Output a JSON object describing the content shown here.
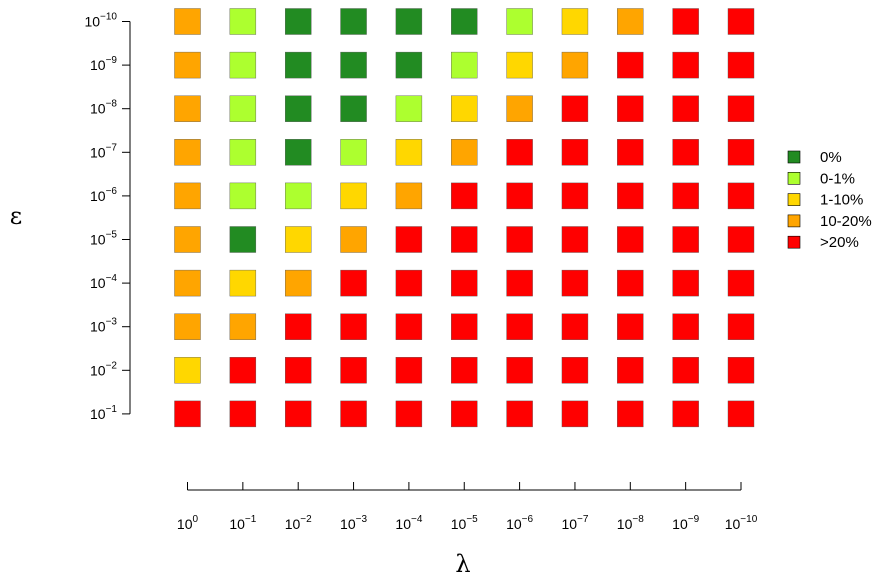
{
  "chart_data": {
    "type": "heatmap",
    "xlabel": "λ",
    "ylabel": "ε",
    "x_tick_labels": [
      {
        "base": "10",
        "exp": "0"
      },
      {
        "base": "10",
        "exp": "−1"
      },
      {
        "base": "10",
        "exp": "−2"
      },
      {
        "base": "10",
        "exp": "−3"
      },
      {
        "base": "10",
        "exp": "−4"
      },
      {
        "base": "10",
        "exp": "−5"
      },
      {
        "base": "10",
        "exp": "−6"
      },
      {
        "base": "10",
        "exp": "−7"
      },
      {
        "base": "10",
        "exp": "−8"
      },
      {
        "base": "10",
        "exp": "−9"
      },
      {
        "base": "10",
        "exp": "−10"
      }
    ],
    "y_tick_labels_top_to_bottom": [
      {
        "base": "10",
        "exp": "−10"
      },
      {
        "base": "10",
        "exp": "−9"
      },
      {
        "base": "10",
        "exp": "−8"
      },
      {
        "base": "10",
        "exp": "−7"
      },
      {
        "base": "10",
        "exp": "−6"
      },
      {
        "base": "10",
        "exp": "−5"
      },
      {
        "base": "10",
        "exp": "−4"
      },
      {
        "base": "10",
        "exp": "−3"
      },
      {
        "base": "10",
        "exp": "−2"
      },
      {
        "base": "10",
        "exp": "−1"
      }
    ],
    "legend": [
      {
        "label": "0%",
        "color": "#228B22"
      },
      {
        "label": "0-1%",
        "color": "#ADFF2F"
      },
      {
        "label": "1-10%",
        "color": "#FFD700"
      },
      {
        "label": "10-20%",
        "color": "#FFA500"
      },
      {
        "label": ">20%",
        "color": "#FF0000"
      }
    ],
    "legend_position": "right",
    "grid": false,
    "cell_categories_rows_top_to_bottom": [
      [
        3,
        1,
        0,
        0,
        0,
        0,
        1,
        2,
        3,
        4,
        4
      ],
      [
        3,
        1,
        0,
        0,
        0,
        1,
        2,
        3,
        4,
        4,
        4
      ],
      [
        3,
        1,
        0,
        0,
        1,
        2,
        3,
        4,
        4,
        4,
        4
      ],
      [
        3,
        1,
        0,
        1,
        2,
        3,
        4,
        4,
        4,
        4,
        4
      ],
      [
        3,
        1,
        1,
        2,
        3,
        4,
        4,
        4,
        4,
        4,
        4
      ],
      [
        3,
        0,
        2,
        3,
        4,
        4,
        4,
        4,
        4,
        4,
        4
      ],
      [
        3,
        2,
        3,
        4,
        4,
        4,
        4,
        4,
        4,
        4,
        4
      ],
      [
        3,
        3,
        4,
        4,
        4,
        4,
        4,
        4,
        4,
        4,
        4
      ],
      [
        2,
        4,
        4,
        4,
        4,
        4,
        4,
        4,
        4,
        4,
        4
      ],
      [
        4,
        4,
        4,
        4,
        4,
        4,
        4,
        4,
        4,
        4,
        4
      ]
    ]
  }
}
